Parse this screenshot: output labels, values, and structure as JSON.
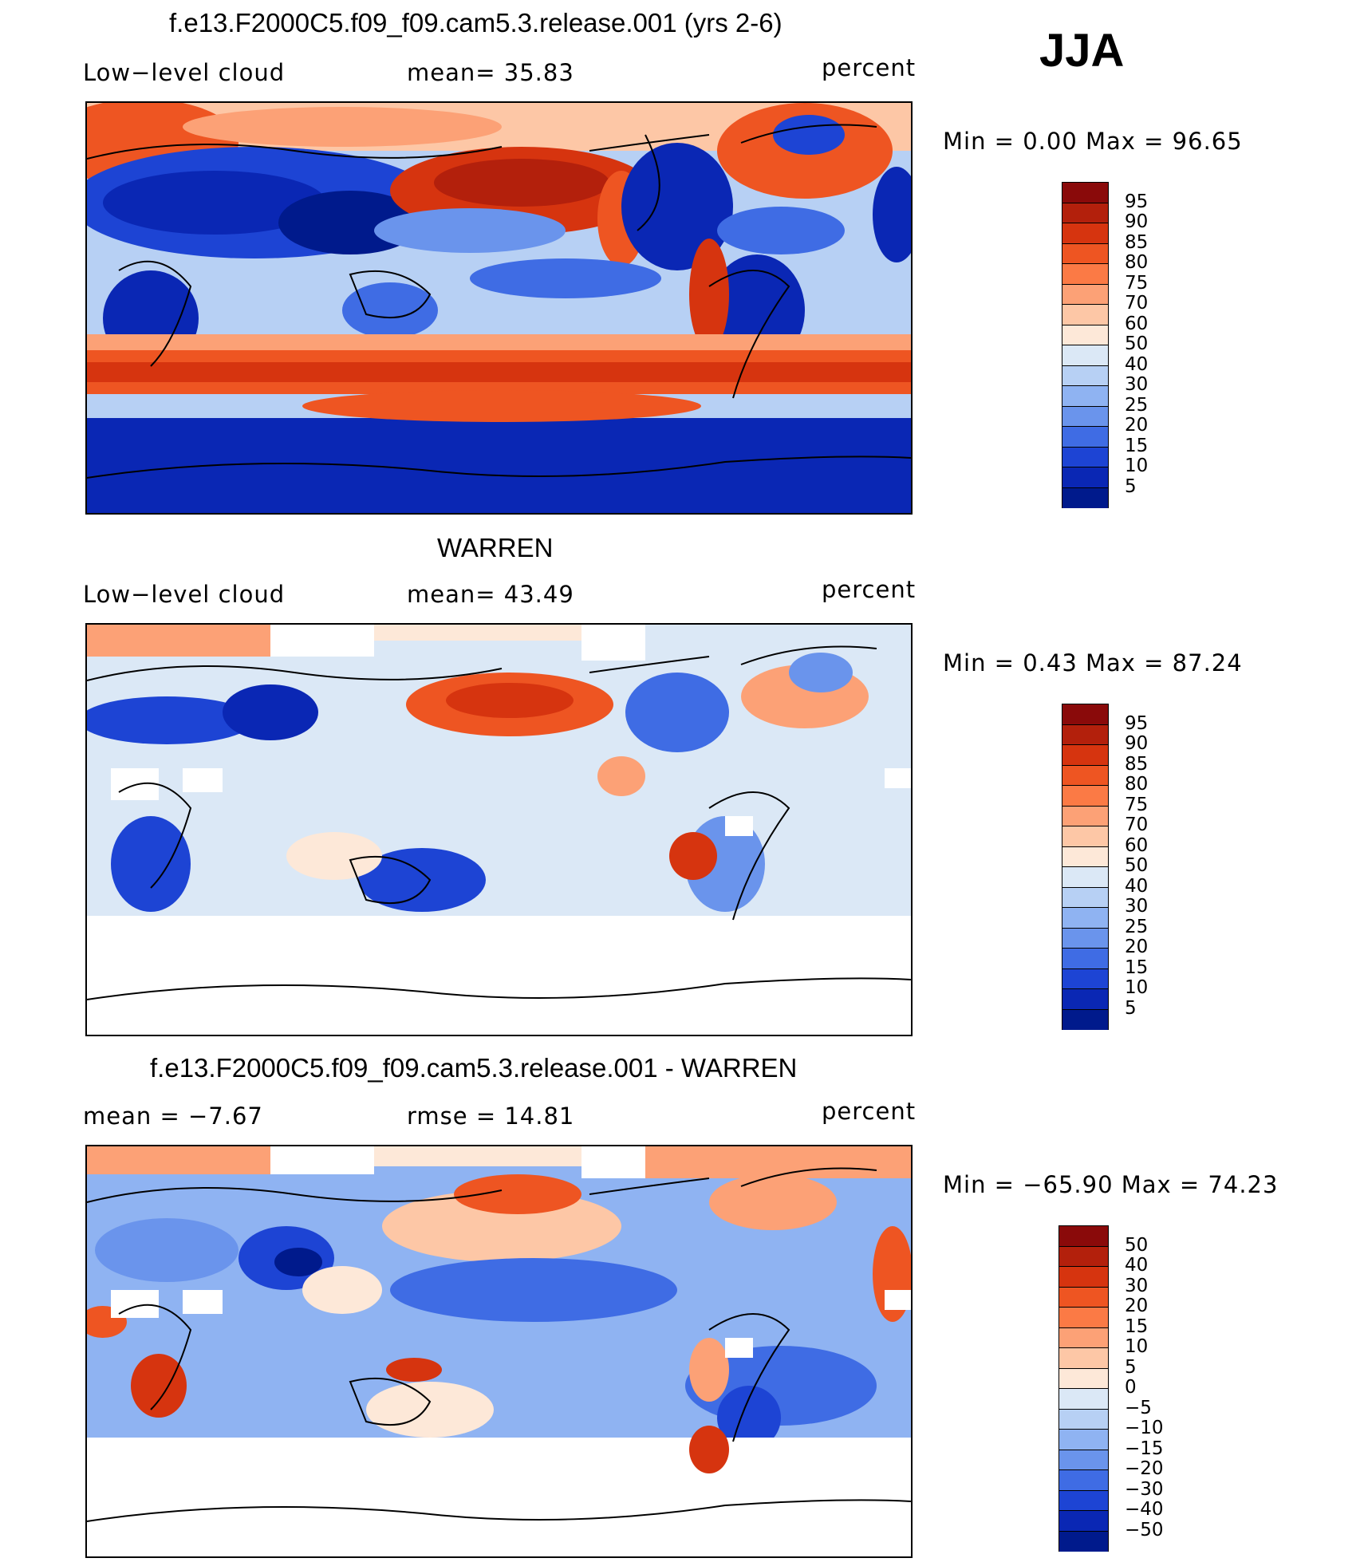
{
  "season": "JJA",
  "panels": [
    {
      "title": "f.e13.F2000C5.f09_f09.cam5.3.release.001 (yrs 2-6)",
      "left_label": "Low−level cloud",
      "center_label": "mean=   35.83",
      "right_label": "percent",
      "minmax": "Min  =     0.00  Max  =    96.65",
      "cbar_levels": [
        "95",
        "90",
        "85",
        "80",
        "75",
        "70",
        "60",
        "50",
        "40",
        "30",
        "25",
        "20",
        "15",
        "10",
        "5"
      ],
      "palette": [
        "#8a0a0a",
        "#b3200c",
        "#d6340f",
        "#ee5522",
        "#fb7a45",
        "#fca176",
        "#fdc7a6",
        "#fde8d8",
        "#dbe8f6",
        "#b7d0f4",
        "#8fb3f2",
        "#6a94ec",
        "#3f6ce4",
        "#1d44d4",
        "#0a27b4",
        "#001a8c"
      ]
    },
    {
      "title": "WARREN",
      "left_label": "Low−level cloud",
      "center_label": "mean=   43.49",
      "right_label": "percent",
      "minmax": "Min  =     0.43  Max  =    87.24",
      "cbar_levels": [
        "95",
        "90",
        "85",
        "80",
        "75",
        "70",
        "60",
        "50",
        "40",
        "30",
        "25",
        "20",
        "15",
        "10",
        "5"
      ],
      "palette": [
        "#8a0a0a",
        "#b3200c",
        "#d6340f",
        "#ee5522",
        "#fb7a45",
        "#fca176",
        "#fdc7a6",
        "#fde8d8",
        "#dbe8f6",
        "#b7d0f4",
        "#8fb3f2",
        "#6a94ec",
        "#3f6ce4",
        "#1d44d4",
        "#0a27b4",
        "#001a8c"
      ]
    },
    {
      "title": "f.e13.F2000C5.f09_f09.cam5.3.release.001 - WARREN",
      "left_label": "mean  =   −7.67",
      "center_label": "rmse  =    14.81",
      "right_label": "percent",
      "minmax": "Min  = −65.90  Max  =    74.23",
      "cbar_levels": [
        "50",
        "40",
        "30",
        "20",
        "15",
        "10",
        "5",
        "0",
        "−5",
        "−10",
        "−15",
        "−20",
        "−30",
        "−40",
        "−50"
      ],
      "palette": [
        "#8a0a0a",
        "#b3200c",
        "#d6340f",
        "#ee5522",
        "#fb7a45",
        "#fca176",
        "#fdc7a6",
        "#fde8d8",
        "#dbe8f6",
        "#b7d0f4",
        "#8fb3f2",
        "#6a94ec",
        "#3f6ce4",
        "#1d44d4",
        "#0a27b4",
        "#001a8c"
      ]
    }
  ]
}
